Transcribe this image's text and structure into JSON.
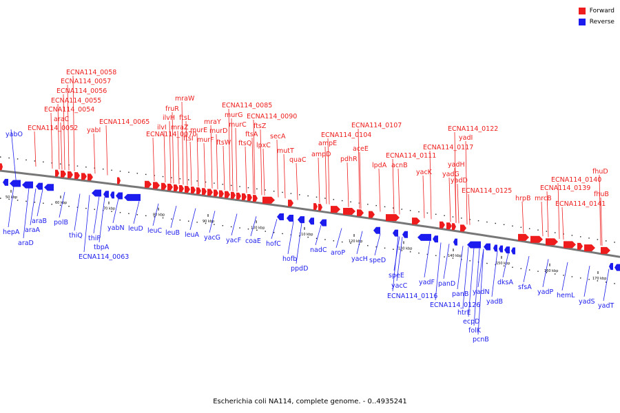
{
  "caption": "Escherichia coli NA114, complete genome. - 0..4935241",
  "legend": [
    {
      "label": "Forward",
      "color": "#ee1c1c"
    },
    {
      "label": "Reverse",
      "color": "#1c1cee"
    }
  ],
  "colors": {
    "forward": "#ee1c1c",
    "reverse": "#1c1cee",
    "backbone": "#777777"
  },
  "ticks": [
    "50 kbp",
    "60 kbp",
    "70 kbp",
    "80 kbp",
    "90 kbp",
    "100 kbp",
    "110 kbp",
    "120 kbp",
    "130 kbp",
    "140 kbp",
    "150 kbp",
    "160 kbp",
    "170 kbp"
  ],
  "forward_labels": [
    "ECNA114_0058",
    "ECNA114_0057",
    "ECNA114_0056",
    "ECNA114_0055",
    "ECNA114_0054",
    "araC",
    "ECNA114_0052",
    "yabI",
    "ECNA114_0065",
    "mraW",
    "fruR",
    "ftsL",
    "ilvH",
    "ilvI",
    "mraZ",
    "ftsI",
    "murE",
    "murF",
    "mraY",
    "murD",
    "ftsW",
    "ECNA114_0085",
    "murG",
    "murC",
    "ECNA114_0090",
    "ftsQ",
    "ftsA",
    "lpxC",
    "ftsZ",
    "secA",
    "mutT",
    "quaC",
    "ECNA114_0070",
    "ECNA114_0107",
    "ECNA114_0104",
    "ampE",
    "ampD",
    "aceE",
    "pdhR",
    "lpdA",
    "acnB",
    "ECNA114_0111",
    "yacK",
    "ECNA114_0122",
    "yadI",
    "ECNA114_0117",
    "yadH",
    "yadG",
    "yadD",
    "ECNA114_0125",
    "fhuD",
    "ECNA114_0140",
    "ECNA114_0139",
    "hrpB",
    "mrcB",
    "fhuB",
    "ECNA114_0141"
  ],
  "reverse_labels": [
    "yabO",
    "hepA",
    "araD",
    "araA",
    "araB",
    "polB",
    "thiQ",
    "thiP",
    "tbpA",
    "yabN",
    "leuD",
    "leuC",
    "leuB",
    "leuA",
    "ECNA114_0063",
    "yacG",
    "yacF",
    "coaE",
    "hofC",
    "hofb",
    "ppdD",
    "nadC",
    "aroP",
    "yacH",
    "speD",
    "speE",
    "yacC",
    "ECNA114_0116",
    "yadF",
    "panD",
    "panB",
    "ECNA114_0126",
    "htrE",
    "ecpD",
    "yadN",
    "folK",
    "pcnB",
    "yadB",
    "dksA",
    "sfsA",
    "yadP",
    "hemL",
    "yadS",
    "yadT"
  ]
}
